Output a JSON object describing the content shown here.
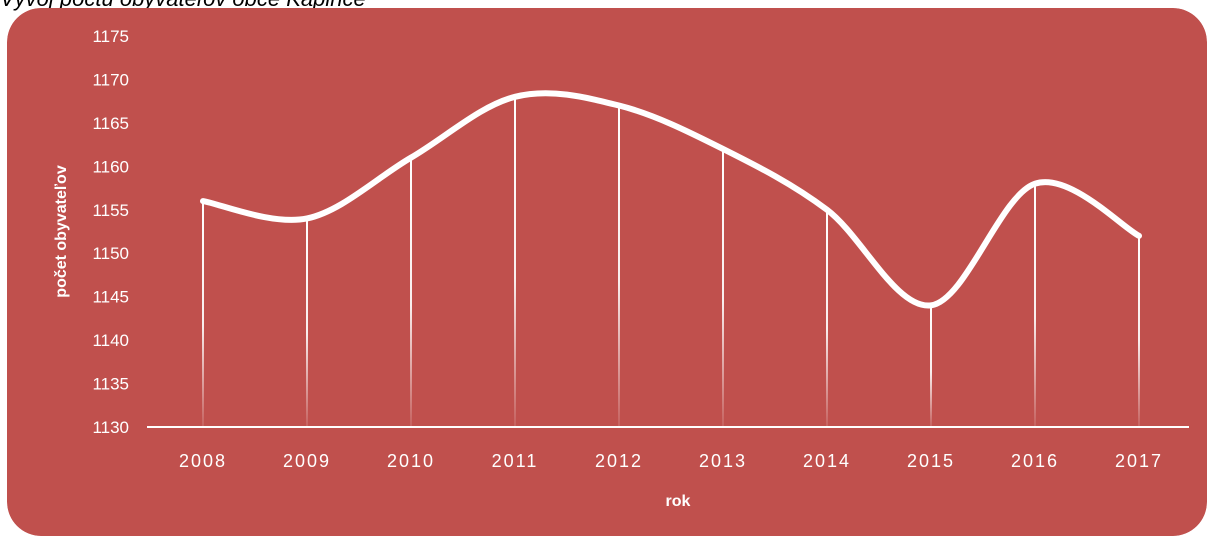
{
  "title_text": "Vývoj počtu obyvateľov obce Kapince",
  "colors": {
    "background": "#C0504D",
    "line": "#FFFFFF",
    "text": "#FFFFFF"
  },
  "chart_data": {
    "type": "line",
    "title": "",
    "xlabel": "rok",
    "ylabel": "počet obyvateľov",
    "categories": [
      "2008",
      "2009",
      "2010",
      "2011",
      "2012",
      "2013",
      "2014",
      "2015",
      "2016",
      "2017"
    ],
    "series": [
      {
        "values": [
          1156,
          1154,
          1161,
          1168,
          1167,
          1162,
          1155,
          1144,
          1158,
          1152
        ]
      }
    ],
    "ylim": [
      1130,
      1175
    ],
    "yticks": [
      "1130",
      "1135",
      "1140",
      "1145",
      "1150",
      "1155",
      "1160",
      "1165",
      "1170",
      "1175"
    ],
    "smooth": true,
    "drop_lines": true,
    "grid": false,
    "legend": "none"
  }
}
